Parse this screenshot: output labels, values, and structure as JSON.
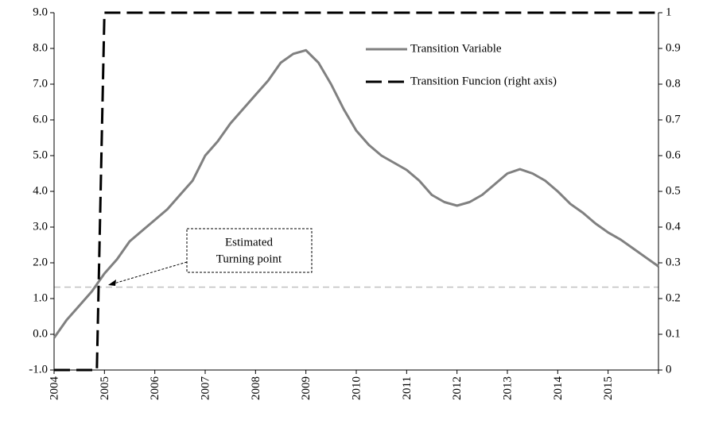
{
  "chart_data": {
    "type": "line",
    "annotation": [
      "Estimated",
      "Turning point"
    ],
    "legend": "upper right",
    "hline": 1.32,
    "hline_color": "#c0c0c0",
    "xlim": [
      2004,
      2016
    ],
    "xticks": [
      2004,
      2005,
      2006,
      2007,
      2008,
      2009,
      2010,
      2011,
      2012,
      2013,
      2014,
      2015
    ],
    "ylim": [
      -1,
      9
    ],
    "yticks": [
      {
        "value": -1,
        "label": "-1.0"
      },
      {
        "value": 0,
        "label": "0.0"
      },
      {
        "value": 1,
        "label": "1.0"
      },
      {
        "value": 2,
        "label": "2.0"
      },
      {
        "value": 3,
        "label": "3.0"
      },
      {
        "value": 4,
        "label": "4.0"
      },
      {
        "value": 5,
        "label": "5.0"
      },
      {
        "value": 6,
        "label": "6.0"
      },
      {
        "value": 7,
        "label": "7.0"
      },
      {
        "value": 8,
        "label": "8.0"
      },
      {
        "value": 9,
        "label": "9.0"
      }
    ],
    "y2lim": [
      0,
      1
    ],
    "y2ticks": [
      0,
      0.1,
      0.2,
      0.3,
      0.4,
      0.5,
      0.6,
      0.7,
      0.8,
      0.9,
      1
    ],
    "series": [
      {
        "name": "Transition Variable",
        "color": "#808080",
        "dash": false,
        "x": [
          2004,
          2004.25,
          2004.5,
          2004.75,
          2005,
          2005.25,
          2005.5,
          2005.75,
          2006,
          2006.25,
          2006.5,
          2006.75,
          2007,
          2007.25,
          2007.5,
          2007.75,
          2008,
          2008.25,
          2008.5,
          2008.75,
          2009,
          2009.25,
          2009.5,
          2009.75,
          2010,
          2010.25,
          2010.5,
          2010.75,
          2011,
          2011.25,
          2011.5,
          2011.75,
          2012,
          2012.25,
          2012.5,
          2012.75,
          2013,
          2013.25,
          2013.5,
          2013.75,
          2014,
          2014.25,
          2014.5,
          2014.75,
          2015,
          2015.25,
          2015.5,
          2015.75,
          2016
        ],
        "values": [
          -0.1,
          0.4,
          0.8,
          1.2,
          1.7,
          2.1,
          2.6,
          2.9,
          3.2,
          3.5,
          3.9,
          4.3,
          5.0,
          5.4,
          5.9,
          6.3,
          6.7,
          7.1,
          7.6,
          7.85,
          7.95,
          7.6,
          7.0,
          6.3,
          5.7,
          5.3,
          5.0,
          4.8,
          4.6,
          4.3,
          3.9,
          3.7,
          3.6,
          3.7,
          3.9,
          4.2,
          4.5,
          4.62,
          4.5,
          4.3,
          4.0,
          3.65,
          3.4,
          3.1,
          2.85,
          2.65,
          2.4,
          2.15,
          1.9
        ]
      },
      {
        "name": "Transition Funcion (right axis)",
        "color": "#000000",
        "dash": true,
        "axis": "y2",
        "x": [
          2004,
          2004.85,
          2005,
          2016
        ],
        "values": [
          0,
          0,
          1,
          1
        ]
      }
    ]
  }
}
